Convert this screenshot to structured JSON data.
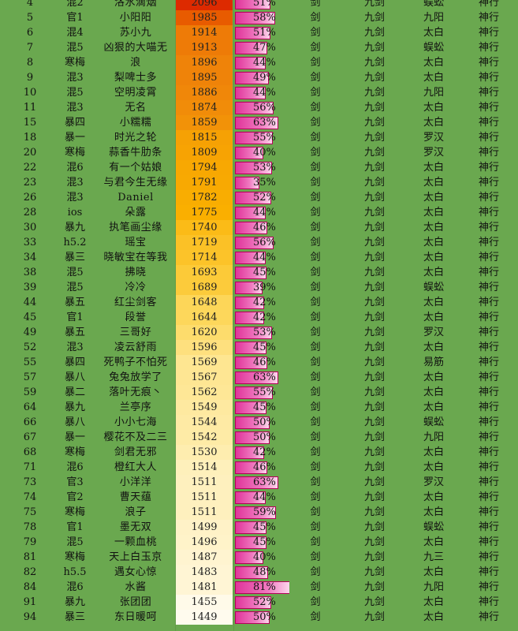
{
  "heat_colors": [
    "#dd2a00",
    "#e85a00",
    "#f08a0a",
    "#fab000",
    "#fdd34c",
    "#fee89a",
    "#fffbee"
  ],
  "rows": [
    {
      "rank": "4",
      "server": "混2",
      "name": "洛水滴烟",
      "score": "2096",
      "pct": "51%",
      "weapon": "剑",
      "skill": "九剑",
      "school": "蜈蚣",
      "move": "神行"
    },
    {
      "rank": "5",
      "server": "官1",
      "name": "小阳阳",
      "score": "1985",
      "pct": "58%",
      "weapon": "剑",
      "skill": "九剑",
      "school": "九阳",
      "move": "神行"
    },
    {
      "rank": "6",
      "server": "混4",
      "name": "苏小九",
      "score": "1914",
      "pct": "51%",
      "weapon": "剑",
      "skill": "九剑",
      "school": "太白",
      "move": "神行"
    },
    {
      "rank": "7",
      "server": "混5",
      "name": "凶狠的大喵无",
      "score": "1913",
      "pct": "47%",
      "weapon": "剑",
      "skill": "九剑",
      "school": "蜈蚣",
      "move": "神行"
    },
    {
      "rank": "8",
      "server": "寒梅",
      "name": "浪",
      "score": "1896",
      "pct": "44%",
      "weapon": "剑",
      "skill": "九剑",
      "school": "太白",
      "move": "神行"
    },
    {
      "rank": "9",
      "server": "混3",
      "name": "梨啤士多",
      "score": "1895",
      "pct": "49%",
      "weapon": "剑",
      "skill": "九剑",
      "school": "太白",
      "move": "神行"
    },
    {
      "rank": "10",
      "server": "混5",
      "name": "空明凌霄",
      "score": "1886",
      "pct": "44%",
      "weapon": "剑",
      "skill": "九剑",
      "school": "九阳",
      "move": "神行"
    },
    {
      "rank": "11",
      "server": "混3",
      "name": "无名",
      "score": "1874",
      "pct": "56%",
      "weapon": "剑",
      "skill": "九剑",
      "school": "太白",
      "move": "神行"
    },
    {
      "rank": "15",
      "server": "暴四",
      "name": "小糯糯",
      "score": "1859",
      "pct": "63%",
      "weapon": "剑",
      "skill": "九剑",
      "school": "太白",
      "move": "神行"
    },
    {
      "rank": "18",
      "server": "暴一",
      "name": "时光之轮",
      "score": "1815",
      "pct": "55%",
      "weapon": "剑",
      "skill": "九剑",
      "school": "罗汉",
      "move": "神行"
    },
    {
      "rank": "20",
      "server": "寒梅",
      "name": "蒜香牛肋条",
      "score": "1809",
      "pct": "40%",
      "weapon": "剑",
      "skill": "九剑",
      "school": "罗汉",
      "move": "神行"
    },
    {
      "rank": "22",
      "server": "混6",
      "name": "有一个姑娘",
      "score": "1794",
      "pct": "53%",
      "weapon": "剑",
      "skill": "九剑",
      "school": "太白",
      "move": "神行"
    },
    {
      "rank": "23",
      "server": "混3",
      "name": "与君今生无缘",
      "score": "1791",
      "pct": "35%",
      "weapon": "剑",
      "skill": "九剑",
      "school": "太白",
      "move": "神行"
    },
    {
      "rank": "26",
      "server": "混3",
      "name": "Daniel",
      "score": "1782",
      "pct": "52%",
      "weapon": "剑",
      "skill": "九剑",
      "school": "太白",
      "move": "神行"
    },
    {
      "rank": "28",
      "server": "ios",
      "name": "朵露",
      "score": "1775",
      "pct": "44%",
      "weapon": "剑",
      "skill": "九剑",
      "school": "太白",
      "move": "神行"
    },
    {
      "rank": "30",
      "server": "暴九",
      "name": "执笔画尘缘",
      "score": "1740",
      "pct": "46%",
      "weapon": "剑",
      "skill": "九剑",
      "school": "太白",
      "move": "神行"
    },
    {
      "rank": "33",
      "server": "h5.2",
      "name": "瑶宝",
      "score": "1719",
      "pct": "56%",
      "weapon": "剑",
      "skill": "九剑",
      "school": "太白",
      "move": "神行"
    },
    {
      "rank": "34",
      "server": "暴三",
      "name": "晓敏宝在等我",
      "score": "1714",
      "pct": "44%",
      "weapon": "剑",
      "skill": "九剑",
      "school": "太白",
      "move": "神行"
    },
    {
      "rank": "38",
      "server": "混5",
      "name": "拂晓",
      "score": "1693",
      "pct": "45%",
      "weapon": "剑",
      "skill": "九剑",
      "school": "太白",
      "move": "神行"
    },
    {
      "rank": "39",
      "server": "混5",
      "name": "冷冷",
      "score": "1689",
      "pct": "39%",
      "weapon": "剑",
      "skill": "九剑",
      "school": "蜈蚣",
      "move": "神行"
    },
    {
      "rank": "44",
      "server": "暴五",
      "name": "红尘剑客",
      "score": "1648",
      "pct": "42%",
      "weapon": "剑",
      "skill": "九剑",
      "school": "太白",
      "move": "神行"
    },
    {
      "rank": "45",
      "server": "官1",
      "name": "段誉",
      "score": "1644",
      "pct": "42%",
      "weapon": "剑",
      "skill": "九剑",
      "school": "太白",
      "move": "神行"
    },
    {
      "rank": "49",
      "server": "暴五",
      "name": "三哥好",
      "score": "1620",
      "pct": "53%",
      "weapon": "剑",
      "skill": "九剑",
      "school": "罗汉",
      "move": "神行"
    },
    {
      "rank": "52",
      "server": "混3",
      "name": "凌云舒雨",
      "score": "1596",
      "pct": "45%",
      "weapon": "剑",
      "skill": "九剑",
      "school": "太白",
      "move": "神行"
    },
    {
      "rank": "55",
      "server": "暴四",
      "name": "死鸭子不怕死",
      "score": "1569",
      "pct": "46%",
      "weapon": "剑",
      "skill": "九剑",
      "school": "易筋",
      "move": "神行"
    },
    {
      "rank": "57",
      "server": "暴八",
      "name": "兔兔放学了",
      "score": "1567",
      "pct": "63%",
      "weapon": "剑",
      "skill": "九剑",
      "school": "太白",
      "move": "神行"
    },
    {
      "rank": "59",
      "server": "暴二",
      "name": "落叶无痕丶",
      "score": "1562",
      "pct": "55%",
      "weapon": "剑",
      "skill": "九剑",
      "school": "太白",
      "move": "神行"
    },
    {
      "rank": "64",
      "server": "暴九",
      "name": "兰亭序",
      "score": "1549",
      "pct": "45%",
      "weapon": "剑",
      "skill": "九剑",
      "school": "太白",
      "move": "神行"
    },
    {
      "rank": "66",
      "server": "暴八",
      "name": "小小七海",
      "score": "1544",
      "pct": "50%",
      "weapon": "剑",
      "skill": "九剑",
      "school": "蜈蚣",
      "move": "神行"
    },
    {
      "rank": "67",
      "server": "暴一",
      "name": "樱花不及二三",
      "score": "1542",
      "pct": "50%",
      "weapon": "剑",
      "skill": "九剑",
      "school": "九阳",
      "move": "神行"
    },
    {
      "rank": "68",
      "server": "寒梅",
      "name": "剑君无邪",
      "score": "1530",
      "pct": "42%",
      "weapon": "剑",
      "skill": "九剑",
      "school": "太白",
      "move": "神行"
    },
    {
      "rank": "71",
      "server": "混6",
      "name": "橙红大人",
      "score": "1514",
      "pct": "46%",
      "weapon": "剑",
      "skill": "九剑",
      "school": "太白",
      "move": "神行"
    },
    {
      "rank": "73",
      "server": "官3",
      "name": "小洋洋",
      "score": "1511",
      "pct": "63%",
      "weapon": "剑",
      "skill": "九剑",
      "school": "罗汉",
      "move": "神行"
    },
    {
      "rank": "74",
      "server": "官2",
      "name": "曹天蕴",
      "score": "1511",
      "pct": "44%",
      "weapon": "剑",
      "skill": "九剑",
      "school": "太白",
      "move": "神行"
    },
    {
      "rank": "75",
      "server": "寒梅",
      "name": "浪子",
      "score": "1511",
      "pct": "59%",
      "weapon": "剑",
      "skill": "九剑",
      "school": "太白",
      "move": "神行"
    },
    {
      "rank": "78",
      "server": "官1",
      "name": "墨无双",
      "score": "1499",
      "pct": "45%",
      "weapon": "剑",
      "skill": "九剑",
      "school": "蜈蚣",
      "move": "神行"
    },
    {
      "rank": "79",
      "server": "混5",
      "name": "一颗血桃",
      "score": "1496",
      "pct": "45%",
      "weapon": "剑",
      "skill": "九剑",
      "school": "太白",
      "move": "神行"
    },
    {
      "rank": "81",
      "server": "寒梅",
      "name": "天上白玉京",
      "score": "1487",
      "pct": "40%",
      "weapon": "剑",
      "skill": "九剑",
      "school": "九三",
      "move": "神行"
    },
    {
      "rank": "82",
      "server": "h5.5",
      "name": "遇女心惊",
      "score": "1483",
      "pct": "48%",
      "weapon": "剑",
      "skill": "九剑",
      "school": "太白",
      "move": "神行"
    },
    {
      "rank": "84",
      "server": "混6",
      "name": "水酱",
      "score": "1481",
      "pct": "81%",
      "weapon": "剑",
      "skill": "九剑",
      "school": "九阳",
      "move": "神行"
    },
    {
      "rank": "91",
      "server": "暴九",
      "name": "张团团",
      "score": "1455",
      "pct": "52%",
      "weapon": "剑",
      "skill": "九剑",
      "school": "太白",
      "move": "神行"
    },
    {
      "rank": "94",
      "server": "暴三",
      "name": "东日暖呵",
      "score": "1449",
      "pct": "50%",
      "weapon": "剑",
      "skill": "九剑",
      "school": "太白",
      "move": "神行"
    }
  ]
}
